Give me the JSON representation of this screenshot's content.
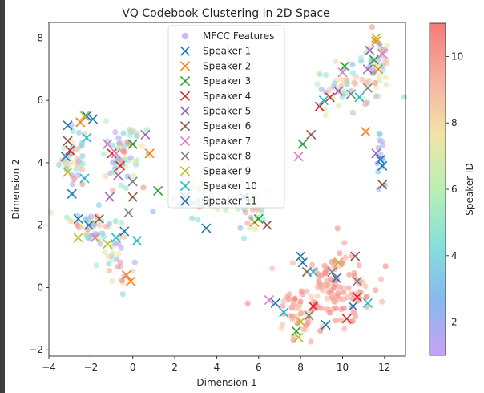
{
  "chart_data": {
    "type": "scatter",
    "title": "VQ Codebook Clustering in 2D Space",
    "xlabel": "Dimension 1",
    "ylabel": "Dimension 2",
    "xlim": [
      -4,
      13
    ],
    "ylim": [
      -2.2,
      8.5
    ],
    "xticks": [
      -4,
      -2,
      0,
      2,
      4,
      6,
      8,
      10,
      12
    ],
    "yticks": [
      -2,
      0,
      2,
      4,
      6,
      8
    ],
    "grid": false,
    "legend_position": "top-center",
    "colorbar": {
      "label": "Speaker ID",
      "range": [
        1,
        11
      ],
      "ticks": [
        2,
        4,
        6,
        8,
        10
      ],
      "colormap": [
        "#c9a0f5",
        "#87b9ee",
        "#86e0d9",
        "#b9f0b3",
        "#f3e3a7",
        "#f6b0a0",
        "#f57a7a"
      ]
    },
    "features": {
      "name": "MFCC Features",
      "marker": "circle",
      "color": "#c59cf2",
      "clusters": [
        {
          "cx": -2.8,
          "cy": 4.2,
          "sx": 0.35,
          "sy": 0.5,
          "n": 40,
          "cmin": 1,
          "cmax": 11
        },
        {
          "cx": -0.5,
          "cy": 4.2,
          "sx": 0.5,
          "sy": 0.45,
          "n": 60,
          "cmin": 1,
          "cmax": 11
        },
        {
          "cx": -2.0,
          "cy": 2.0,
          "sx": 0.55,
          "sy": 0.35,
          "n": 45,
          "cmin": 1,
          "cmax": 11
        },
        {
          "cx": -0.8,
          "cy": 1.0,
          "sx": 0.4,
          "sy": 0.5,
          "n": 30,
          "cmin": 1,
          "cmax": 11
        },
        {
          "cx": 3.0,
          "cy": 2.9,
          "sx": 0.6,
          "sy": 0.3,
          "n": 40,
          "cmin": 2,
          "cmax": 11
        },
        {
          "cx": 5.5,
          "cy": 2.5,
          "sx": 0.5,
          "sy": 0.35,
          "n": 30,
          "cmin": 2,
          "cmax": 11
        },
        {
          "cx": 10.0,
          "cy": 6.3,
          "sx": 0.9,
          "sy": 0.5,
          "n": 50,
          "cmin": 1,
          "cmax": 11
        },
        {
          "cx": 11.5,
          "cy": 7.3,
          "sx": 0.4,
          "sy": 0.5,
          "n": 35,
          "cmin": 1,
          "cmax": 11
        },
        {
          "cx": 11.8,
          "cy": 4.2,
          "sx": 0.12,
          "sy": 0.35,
          "n": 15,
          "cmin": 1,
          "cmax": 4
        },
        {
          "cx": 9.5,
          "cy": 0.0,
          "sx": 1.0,
          "sy": 0.6,
          "n": 120,
          "cmin": 9,
          "cmax": 11
        },
        {
          "cx": 7.8,
          "cy": -0.9,
          "sx": 0.6,
          "sy": 0.4,
          "n": 40,
          "cmin": 8,
          "cmax": 11
        }
      ]
    },
    "series": [
      {
        "name": "Speaker 1",
        "color": "#1f77b4",
        "points": [
          [
            -3.1,
            5.2
          ],
          [
            -2.2,
            5.5
          ],
          [
            -2.6,
            2.2
          ],
          [
            -0.4,
            1.8
          ],
          [
            3.5,
            1.9
          ],
          [
            8.0,
            1.0
          ],
          [
            11.9,
            3.9
          ],
          [
            9.2,
            -1.2
          ]
        ]
      },
      {
        "name": "Speaker 2",
        "color": "#ff7f0e",
        "points": [
          [
            -2.5,
            5.3
          ],
          [
            -0.3,
            0.4
          ],
          [
            -0.1,
            0.2
          ],
          [
            0.8,
            4.3
          ],
          [
            5.8,
            2.1
          ],
          [
            11.6,
            7.9
          ],
          [
            11.1,
            5.0
          ],
          [
            11.7,
            7.0
          ]
        ]
      },
      {
        "name": "Speaker 3",
        "color": "#2ca02c",
        "points": [
          [
            0.0,
            4.6
          ],
          [
            1.2,
            3.1
          ],
          [
            6.0,
            2.2
          ],
          [
            8.1,
            4.6
          ],
          [
            10.1,
            7.1
          ],
          [
            11.5,
            7.3
          ],
          [
            7.8,
            -1.4
          ]
        ]
      },
      {
        "name": "Speaker 4",
        "color": "#d62728",
        "points": [
          [
            -3.0,
            4.4
          ],
          [
            -1.0,
            4.3
          ],
          [
            -0.6,
            3.9
          ],
          [
            8.9,
            5.8
          ],
          [
            9.4,
            6.1
          ],
          [
            10.7,
            -0.3
          ],
          [
            10.2,
            -1.0
          ],
          [
            8.6,
            -0.6
          ]
        ]
      },
      {
        "name": "Speaker 5",
        "color": "#9467bd",
        "points": [
          [
            -1.1,
            2.9
          ],
          [
            0.6,
            4.9
          ],
          [
            -0.7,
            3.6
          ],
          [
            11.6,
            4.3
          ],
          [
            11.2,
            7.0
          ],
          [
            9.8,
            6.3
          ],
          [
            11.3,
            7.6
          ]
        ]
      },
      {
        "name": "Speaker 6",
        "color": "#8c564b",
        "points": [
          [
            -3.1,
            4.7
          ],
          [
            0.0,
            2.9
          ],
          [
            -1.6,
            2.2
          ],
          [
            6.4,
            2.0
          ],
          [
            8.5,
            4.9
          ],
          [
            11.9,
            3.3
          ],
          [
            10.6,
            1.0
          ],
          [
            8.3,
            0.5
          ]
        ]
      },
      {
        "name": "Speaker 7",
        "color": "#e377c2",
        "points": [
          [
            -1.2,
            4.6
          ],
          [
            -0.8,
            4.3
          ],
          [
            7.9,
            4.2
          ],
          [
            11.9,
            7.5
          ],
          [
            10.0,
            6.9
          ],
          [
            6.5,
            -0.4
          ],
          [
            -1.8,
            1.6
          ]
        ]
      },
      {
        "name": "Speaker 8",
        "color": "#7f7f7f",
        "points": [
          [
            0.0,
            3.4
          ],
          [
            -0.2,
            2.4
          ],
          [
            2.5,
            2.9
          ],
          [
            11.2,
            6.4
          ],
          [
            10.4,
            6.2
          ],
          [
            9.5,
            0.5
          ],
          [
            10.7,
            0.2
          ],
          [
            8.4,
            -0.9
          ]
        ]
      },
      {
        "name": "Speaker 9",
        "color": "#bcbd22",
        "points": [
          [
            -2.3,
            5.5
          ],
          [
            -3.1,
            3.7
          ],
          [
            -2.6,
            1.6
          ],
          [
            -1.2,
            1.4
          ],
          [
            11.6,
            8.0
          ],
          [
            7.9,
            -1.6
          ],
          [
            9.8,
            0.8
          ],
          [
            8.0,
            -1.1
          ]
        ]
      },
      {
        "name": "Speaker 10",
        "color": "#17becf",
        "points": [
          [
            -2.2,
            4.8
          ],
          [
            -2.3,
            3.5
          ],
          [
            0.2,
            1.5
          ],
          [
            -0.8,
            1.6
          ],
          [
            10.8,
            6.1
          ],
          [
            9.1,
            6.0
          ],
          [
            11.2,
            -0.5
          ],
          [
            7.2,
            -0.8
          ],
          [
            8.6,
            0.5
          ]
        ]
      },
      {
        "name": "Speaker 11",
        "color": "#1f77b4",
        "points": [
          [
            -1.9,
            5.4
          ],
          [
            -3.2,
            4.2
          ],
          [
            -2.9,
            3.0
          ],
          [
            -2.1,
            2.0
          ],
          [
            3.5,
            2.7
          ],
          [
            5.3,
            2.9
          ],
          [
            6.8,
            -0.5
          ],
          [
            8.1,
            0.8
          ],
          [
            10.5,
            -0.6
          ],
          [
            9.7,
            0.3
          ],
          [
            11.8,
            4.1
          ]
        ]
      }
    ]
  }
}
